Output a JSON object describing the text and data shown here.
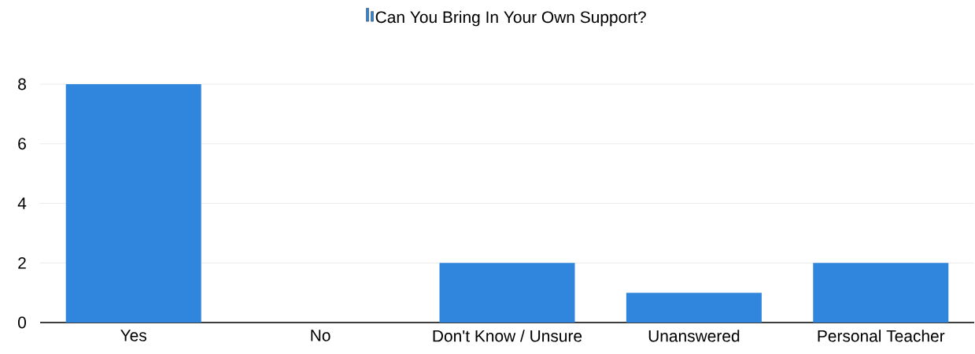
{
  "chart_data": {
    "type": "bar",
    "categories": [
      "Yes",
      "No",
      "Don't Know / Unsure",
      "Unanswered",
      "Personal Teacher"
    ],
    "series": [
      {
        "name": "Can You Bring In Your Own Support?",
        "color": "#2f86dc",
        "values": [
          8,
          0,
          2,
          1,
          2
        ]
      }
    ],
    "ylim": [
      0,
      8
    ],
    "yticks": [
      0,
      2,
      4,
      6,
      8
    ],
    "grid": "y",
    "legend": "top"
  }
}
